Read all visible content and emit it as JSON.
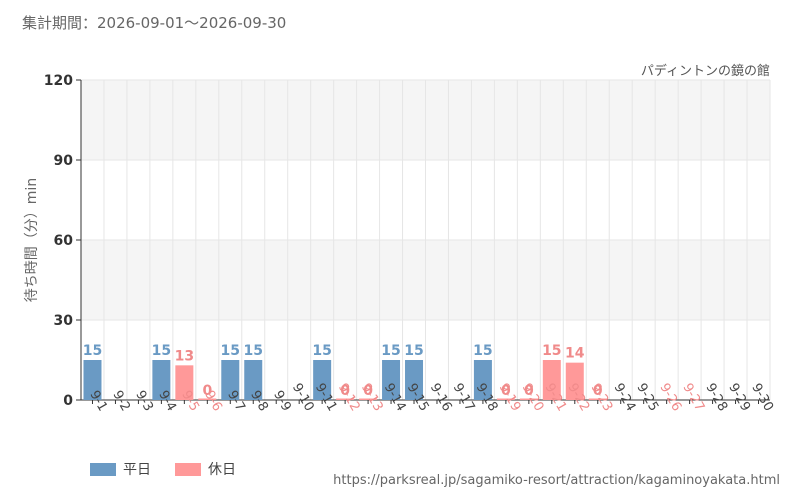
{
  "header": {
    "period": "集計期間：2026-09-01〜2026-09-30",
    "attraction": "パディントンの鏡の館"
  },
  "colors": {
    "weekday": "#6a9ac4",
    "holiday": "#ff9999",
    "holiday_text": "#f08a8a",
    "grid": "#e6e6e6",
    "band": "#f5f5f5"
  },
  "legend": {
    "weekday_label": "平日",
    "holiday_label": "休日"
  },
  "source": "https://parksreal.jp/sagamiko-resort/attraction/kagaminoyakata.html",
  "chart_data": {
    "type": "bar",
    "ylabel": "待ち時間（分）min",
    "ylim": [
      0,
      120
    ],
    "yticks": [
      0,
      30,
      60,
      90,
      120
    ],
    "grid": true,
    "legend_position": "bottom-left",
    "categories": [
      "9-1",
      "9-2",
      "9-3",
      "9-4",
      "9-5",
      "9-6",
      "9-7",
      "9-8",
      "9-9",
      "9-10",
      "9-11",
      "9-12",
      "9-13",
      "9-14",
      "9-15",
      "9-16",
      "9-17",
      "9-18",
      "9-19",
      "9-20",
      "9-21",
      "9-22",
      "9-23",
      "9-24",
      "9-25",
      "9-26",
      "9-27",
      "9-28",
      "9-29",
      "9-30"
    ],
    "holiday": [
      false,
      false,
      false,
      false,
      true,
      true,
      false,
      false,
      false,
      false,
      false,
      true,
      true,
      false,
      false,
      false,
      false,
      false,
      true,
      true,
      true,
      true,
      true,
      false,
      false,
      true,
      true,
      false,
      false,
      false
    ],
    "values": [
      15,
      null,
      null,
      15,
      13,
      0,
      15,
      15,
      null,
      null,
      15,
      0,
      0,
      15,
      15,
      null,
      null,
      15,
      0,
      0,
      15,
      14,
      0,
      null,
      null,
      null,
      null,
      null,
      null,
      null
    ]
  }
}
